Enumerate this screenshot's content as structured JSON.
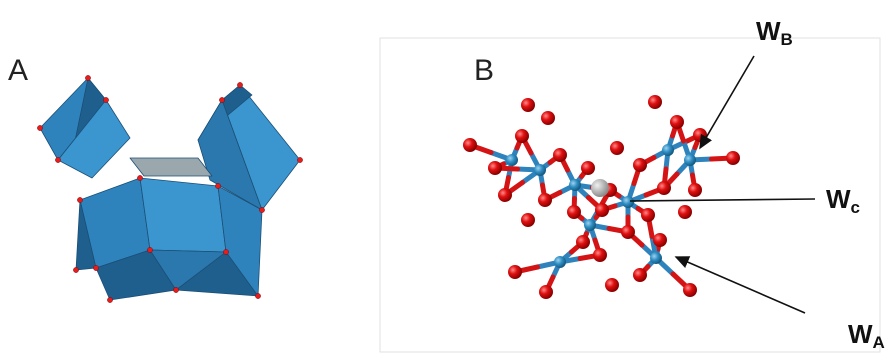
{
  "panels": [
    {
      "label": "A"
    },
    {
      "label": "B",
      "annotations": [
        {
          "text": "W",
          "sub": "B"
        },
        {
          "text": "W",
          "sub": "c"
        },
        {
          "text": "W",
          "sub": "A"
        }
      ]
    }
  ]
}
